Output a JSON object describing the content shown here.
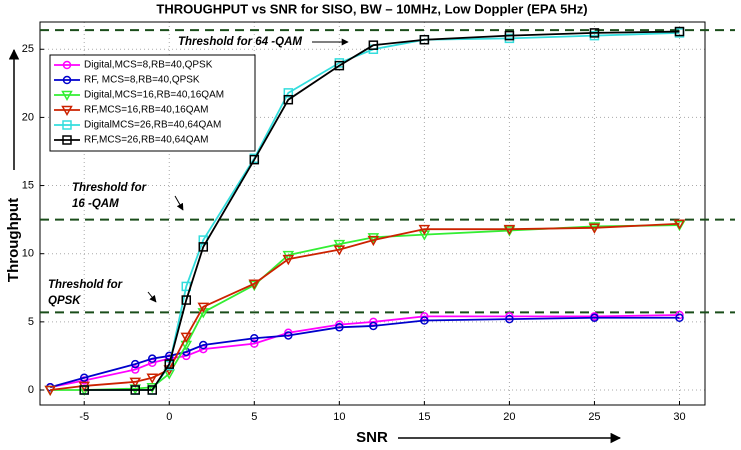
{
  "chart_data": {
    "type": "line",
    "title": "THROUGHPUT vs SNR for SISO, BW – 10MHz, Low Doppler (EPA 5Hz)",
    "x_label": "SNR",
    "y_label": "Throughput",
    "x": [
      -7,
      -5,
      -2,
      -1,
      0,
      1,
      2,
      5,
      7,
      10,
      12,
      15,
      20,
      25,
      30
    ],
    "series": [
      {
        "name": "Digital,MCS=8,RB=40,QPSK",
        "color": "#ff00ff",
        "marker": "circle",
        "values": [
          0.2,
          0.7,
          1.5,
          2.0,
          2.3,
          2.5,
          3.0,
          3.4,
          4.2,
          4.8,
          5.0,
          5.4,
          5.4,
          5.4,
          5.5
        ]
      },
      {
        "name": "RF, MCS=8,RB=40,QPSK",
        "color": "#0000cc",
        "marker": "circle",
        "values": [
          0.2,
          0.9,
          1.9,
          2.3,
          2.5,
          2.8,
          3.3,
          3.8,
          4.0,
          4.6,
          4.7,
          5.1,
          5.2,
          5.3,
          5.3
        ]
      },
      {
        "name": "Digital,MCS=16,RB=40,16QAM",
        "color": "#33ee33",
        "marker": "triangle",
        "values": [
          0,
          0,
          0.1,
          0.2,
          1.2,
          3.3,
          5.7,
          7.7,
          9.9,
          10.7,
          11.2,
          11.4,
          11.7,
          12.0,
          12.1
        ]
      },
      {
        "name": "RF,MCS=16,RB=40,16QAM",
        "color": "#cc2200",
        "marker": "triangle",
        "values": [
          0,
          0.3,
          0.6,
          0.9,
          1.5,
          3.9,
          6.1,
          7.8,
          9.6,
          10.3,
          11.0,
          11.8,
          11.8,
          11.9,
          12.2
        ]
      },
      {
        "name": "DigitalMCS=26,RB=40,64QAM",
        "color": "#33dddd",
        "marker": "square",
        "values": [
          null,
          0,
          0,
          0,
          1.8,
          7.6,
          11.0,
          17.0,
          21.8,
          24.0,
          25.0,
          25.7,
          25.8,
          26.0,
          26.2
        ]
      },
      {
        "name": "RF,MCS=26,RB=40,64QAM",
        "color": "#000000",
        "marker": "square",
        "values": [
          null,
          0,
          0,
          0,
          1.9,
          6.6,
          10.5,
          16.9,
          21.3,
          23.8,
          25.3,
          25.7,
          26.0,
          26.2,
          26.3
        ]
      }
    ],
    "thresholds": [
      26.4,
      12.5,
      5.7
    ],
    "threshold_color": "#1a4d1a",
    "annotations": [
      {
        "lines": [
          "Threshold for 64 -QAM"
        ]
      },
      {
        "lines": [
          "Threshold for",
          "16 -QAM"
        ]
      },
      {
        "lines": [
          "Threshold for",
          "QPSK"
        ]
      }
    ],
    "xlim": [
      -7.6,
      31.5
    ],
    "ylim": [
      -1.1,
      27
    ],
    "xticks": [
      -5,
      0,
      5,
      10,
      15,
      20,
      25,
      30
    ],
    "yticks": [
      0,
      5,
      10,
      15,
      20,
      25
    ],
    "grid": true,
    "legend": "upper left"
  }
}
